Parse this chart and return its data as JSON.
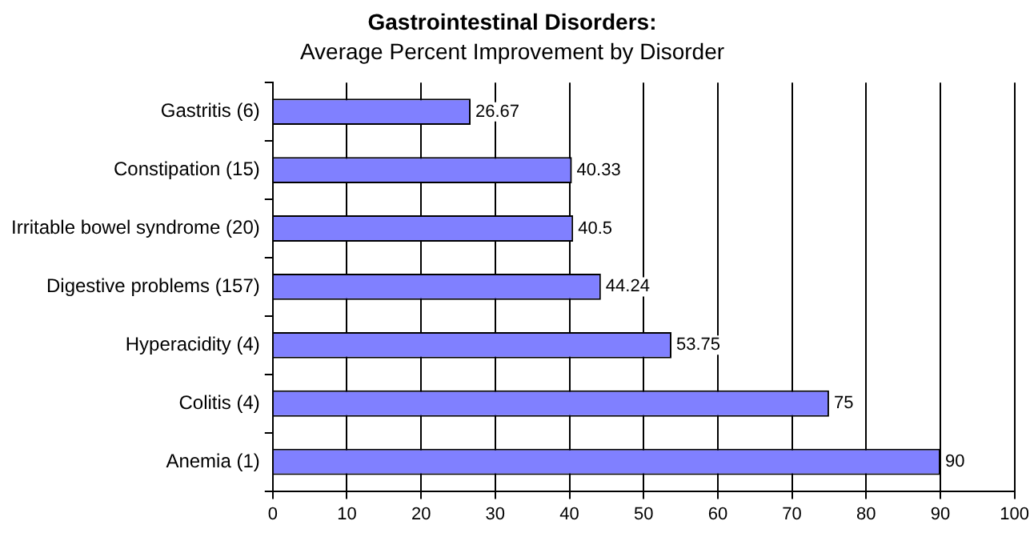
{
  "chart_data": {
    "type": "bar",
    "orientation": "horizontal",
    "title": "Gastrointestinal Disorders:",
    "subtitle": "Average Percent Improvement by Disorder",
    "categories": [
      "Gastritis (6)",
      "Constipation (15)",
      "Irritable bowel syndrome (20)",
      "Digestive problems (157)",
      "Hyperacidity (4)",
      "Colitis (4)",
      "Anemia (1)"
    ],
    "values": [
      26.67,
      40.33,
      40.5,
      44.24,
      53.75,
      75,
      90
    ],
    "color": "#8080ff",
    "xlim": [
      0,
      100
    ],
    "xticks": [
      0,
      10,
      20,
      30,
      40,
      50,
      60,
      70,
      80,
      90,
      100
    ],
    "grid": "x",
    "data_labels": true
  }
}
